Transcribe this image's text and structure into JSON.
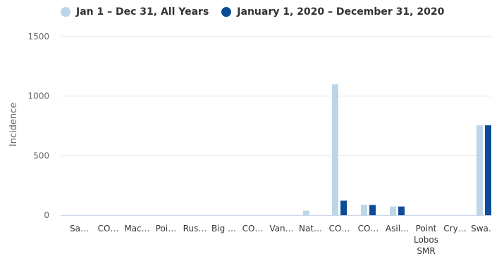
{
  "chart_data": {
    "type": "bar",
    "ylabel": "Incidence",
    "xlabel": "",
    "ylim": [
      0,
      1500
    ],
    "yticks": [
      "0",
      "500",
      "1000",
      "1500"
    ],
    "grid": true,
    "legend_position": "top",
    "categories": [
      "Sa…",
      "CO…",
      "Mac…",
      "Poi…",
      "Rus…",
      "Big …",
      "CO…",
      "Van…",
      "Nat…",
      "CO…",
      "CO…",
      "Asil…",
      "Point Lobos SMR",
      "Cry…",
      "Swa…"
    ],
    "series": [
      {
        "name": "Jan 1 – Dec 31, All Years",
        "color": "#bcd6e8",
        "values": [
          0,
          0,
          0,
          0,
          0,
          0,
          0,
          0,
          38,
          1100,
          88,
          73,
          0,
          0,
          755
        ]
      },
      {
        "name": "January 1, 2020 – December 31, 2020",
        "color": "#0d4c9a",
        "values": [
          0,
          0,
          0,
          0,
          0,
          0,
          0,
          0,
          0,
          122,
          86,
          73,
          0,
          0,
          755
        ]
      }
    ]
  }
}
